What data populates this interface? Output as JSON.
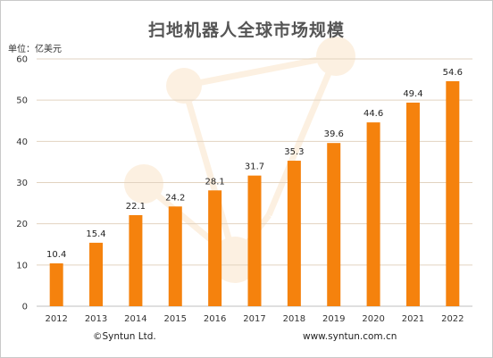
{
  "chart_data": {
    "type": "bar",
    "title": "扫地机器人全球市场规模",
    "unit_label": "单位：亿美元",
    "categories": [
      "2012",
      "2013",
      "2014",
      "2015",
      "2016",
      "2017",
      "2018",
      "2019",
      "2020",
      "2021",
      "2022"
    ],
    "values": [
      10.4,
      15.4,
      22.1,
      24.2,
      28.1,
      31.7,
      35.3,
      39.6,
      44.6,
      49.4,
      54.6
    ],
    "value_labels": [
      "10.4",
      "15.4",
      "22.1",
      "24.2",
      "28.1",
      "31.7",
      "35.3",
      "39.6",
      "44.6",
      "49.4",
      "54.6"
    ],
    "ylim": [
      0,
      60
    ],
    "yticks": [
      "0",
      "10",
      "20",
      "30",
      "40",
      "50",
      "60"
    ],
    "grid": true,
    "legend": "none",
    "bar_color": "#F5820D"
  },
  "footer": {
    "copyright": "©Syntun Ltd.",
    "website": "www.syntun.com.cn"
  }
}
